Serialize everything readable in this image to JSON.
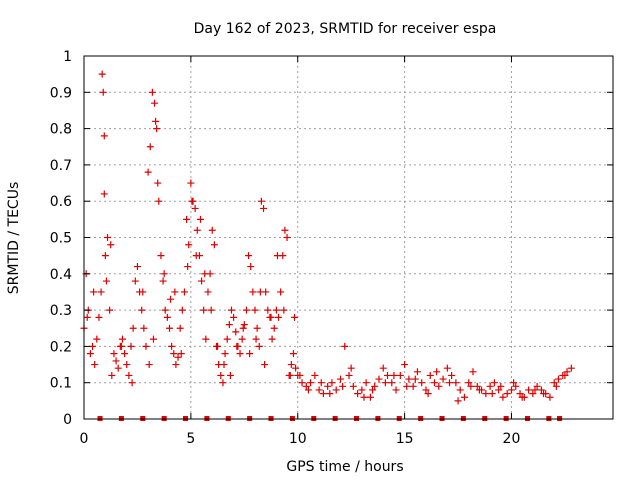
{
  "chart_data": {
    "type": "scatter",
    "title": "Day 162 of 2023, SRMTID for receiver espa",
    "xlabel": "GPS time / hours",
    "ylabel": "SRMTID / TECUs",
    "xlim": [
      0,
      24.75
    ],
    "ylim": [
      0,
      1
    ],
    "x_ticks": [
      0,
      5,
      10,
      15,
      20
    ],
    "x_tick_labels": [
      "0",
      "5",
      "10",
      "15",
      "20"
    ],
    "y_ticks": [
      0,
      0.1,
      0.2,
      0.3,
      0.4,
      0.5,
      0.6,
      0.7,
      0.8,
      0.9,
      1
    ],
    "y_tick_labels": [
      "0",
      "0.1",
      "0.2",
      "0.3",
      "0.4",
      "0.5",
      "0.6",
      "0.7",
      "0.8",
      "0.9",
      "1"
    ],
    "grid": true,
    "marker": "+",
    "color": "#e00000",
    "series": [
      {
        "name": "SRMTID",
        "x": [
          0.0,
          0.1,
          0.2,
          0.3,
          0.4,
          0.5,
          0.6,
          0.7,
          0.8,
          0.85,
          0.9,
          0.95,
          1.0,
          1.1,
          1.2,
          1.3,
          1.4,
          1.5,
          1.6,
          1.7,
          1.8,
          1.9,
          2.0,
          2.1,
          2.2,
          2.3,
          2.4,
          2.5,
          2.6,
          2.7,
          2.8,
          2.9,
          3.0,
          3.1,
          3.2,
          3.3,
          3.35,
          3.4,
          3.5,
          3.6,
          3.7,
          3.8,
          3.9,
          4.0,
          4.1,
          4.2,
          4.3,
          4.4,
          4.5,
          4.6,
          4.7,
          4.8,
          4.9,
          5.0,
          5.1,
          5.2,
          5.3,
          5.4,
          5.5,
          5.6,
          5.7,
          5.8,
          5.9,
          6.0,
          6.1,
          6.2,
          6.3,
          6.4,
          6.5,
          6.6,
          6.7,
          6.8,
          6.9,
          7.0,
          7.1,
          7.2,
          7.3,
          7.4,
          7.5,
          7.6,
          7.7,
          7.8,
          7.9,
          8.0,
          8.1,
          8.2,
          8.3,
          8.4,
          8.5,
          8.6,
          8.7,
          8.8,
          8.9,
          9.0,
          9.1,
          9.2,
          9.3,
          9.4,
          9.5,
          9.6,
          9.7,
          9.8,
          9.9,
          10.0,
          10.2,
          10.4,
          10.6,
          10.8,
          11.0,
          11.2,
          11.4,
          11.6,
          11.8,
          12.0,
          12.2,
          12.4,
          12.6,
          12.8,
          13.0,
          13.2,
          13.4,
          13.6,
          13.8,
          14.0,
          14.2,
          14.4,
          14.6,
          14.8,
          15.0,
          15.2,
          15.4,
          15.6,
          15.8,
          16.0,
          16.2,
          16.4,
          16.6,
          16.8,
          17.0,
          17.2,
          17.4,
          17.6,
          17.8,
          18.0,
          18.2,
          18.4,
          18.6,
          18.8,
          19.0,
          19.2,
          19.4,
          19.6,
          19.8,
          20.0,
          20.2,
          20.4,
          20.6,
          20.8,
          21.0,
          21.2,
          21.4,
          21.6,
          21.8,
          22.0,
          22.2,
          22.4,
          22.6,
          22.8,
          0.15,
          0.45,
          0.95,
          1.05,
          1.25,
          1.75,
          2.25,
          2.75,
          3.05,
          3.25,
          3.45,
          3.75,
          4.05,
          4.25,
          4.55,
          4.85,
          5.05,
          5.25,
          5.45,
          5.65,
          5.95,
          6.25,
          6.55,
          6.85,
          7.15,
          7.45,
          7.75,
          8.05,
          8.25,
          8.45,
          8.75,
          9.05,
          9.35,
          9.65,
          9.85,
          10.1,
          10.5,
          11.1,
          11.5,
          12.1,
          12.5,
          13.1,
          13.5,
          14.1,
          14.5,
          15.1,
          15.5,
          16.1,
          16.5,
          17.1,
          17.5,
          18.1,
          18.5,
          19.1,
          19.5,
          20.1,
          20.5,
          21.1,
          21.5,
          22.1,
          22.5
        ],
        "y": [
          0.25,
          0.4,
          0.3,
          0.18,
          0.2,
          0.15,
          0.22,
          0.28,
          0.35,
          0.95,
          0.9,
          0.78,
          0.45,
          0.5,
          0.3,
          0.12,
          0.18,
          0.16,
          0.14,
          0.2,
          0.22,
          0.18,
          0.15,
          0.12,
          0.2,
          0.25,
          0.38,
          0.42,
          0.35,
          0.3,
          0.25,
          0.2,
          0.68,
          0.75,
          0.9,
          0.87,
          0.82,
          0.8,
          0.6,
          0.45,
          0.38,
          0.3,
          0.28,
          0.25,
          0.2,
          0.18,
          0.15,
          0.17,
          0.25,
          0.3,
          0.35,
          0.55,
          0.48,
          0.65,
          0.6,
          0.58,
          0.52,
          0.45,
          0.38,
          0.3,
          0.22,
          0.35,
          0.4,
          0.52,
          0.48,
          0.2,
          0.15,
          0.12,
          0.1,
          0.18,
          0.22,
          0.26,
          0.3,
          0.28,
          0.24,
          0.2,
          0.18,
          0.22,
          0.26,
          0.3,
          0.45,
          0.42,
          0.35,
          0.3,
          0.25,
          0.2,
          0.6,
          0.58,
          0.35,
          0.3,
          0.28,
          0.22,
          0.25,
          0.3,
          0.28,
          0.35,
          0.45,
          0.52,
          0.5,
          0.12,
          0.15,
          0.18,
          0.14,
          0.12,
          0.1,
          0.09,
          0.1,
          0.12,
          0.08,
          0.07,
          0.09,
          0.1,
          0.08,
          0.11,
          0.2,
          0.12,
          0.09,
          0.07,
          0.08,
          0.1,
          0.06,
          0.09,
          0.11,
          0.14,
          0.12,
          0.1,
          0.08,
          0.12,
          0.15,
          0.11,
          0.09,
          0.13,
          0.1,
          0.08,
          0.12,
          0.1,
          0.09,
          0.11,
          0.14,
          0.12,
          0.1,
          0.08,
          0.06,
          0.1,
          0.13,
          0.09,
          0.08,
          0.07,
          0.09,
          0.1,
          0.08,
          0.06,
          0.07,
          0.08,
          0.09,
          0.07,
          0.06,
          0.08,
          0.07,
          0.09,
          0.08,
          0.07,
          0.06,
          0.1,
          0.11,
          0.12,
          0.13,
          0.14,
          0.28,
          0.35,
          0.62,
          0.38,
          0.48,
          0.2,
          0.1,
          0.35,
          0.15,
          0.22,
          0.65,
          0.4,
          0.33,
          0.35,
          0.18,
          0.42,
          0.6,
          0.45,
          0.55,
          0.4,
          0.3,
          0.2,
          0.15,
          0.12,
          0.2,
          0.25,
          0.18,
          0.22,
          0.35,
          0.15,
          0.28,
          0.45,
          0.3,
          0.12,
          0.28,
          0.12,
          0.08,
          0.1,
          0.07,
          0.09,
          0.14,
          0.06,
          0.08,
          0.1,
          0.12,
          0.09,
          0.11,
          0.07,
          0.13,
          0.1,
          0.05,
          0.09,
          0.08,
          0.07,
          0.09,
          0.1,
          0.06,
          0.08,
          0.07,
          0.09,
          0.12
        ]
      }
    ],
    "baseline_x": [
      0.75,
      1.75,
      2.75,
      3.75,
      4.75,
      5.75,
      6.75,
      7.75,
      8.75,
      9.75,
      10.75,
      11.75,
      12.75,
      13.75,
      14.75,
      15.75,
      16.75,
      17.75,
      18.75,
      19.75,
      20.75,
      21.75,
      22.25
    ]
  }
}
